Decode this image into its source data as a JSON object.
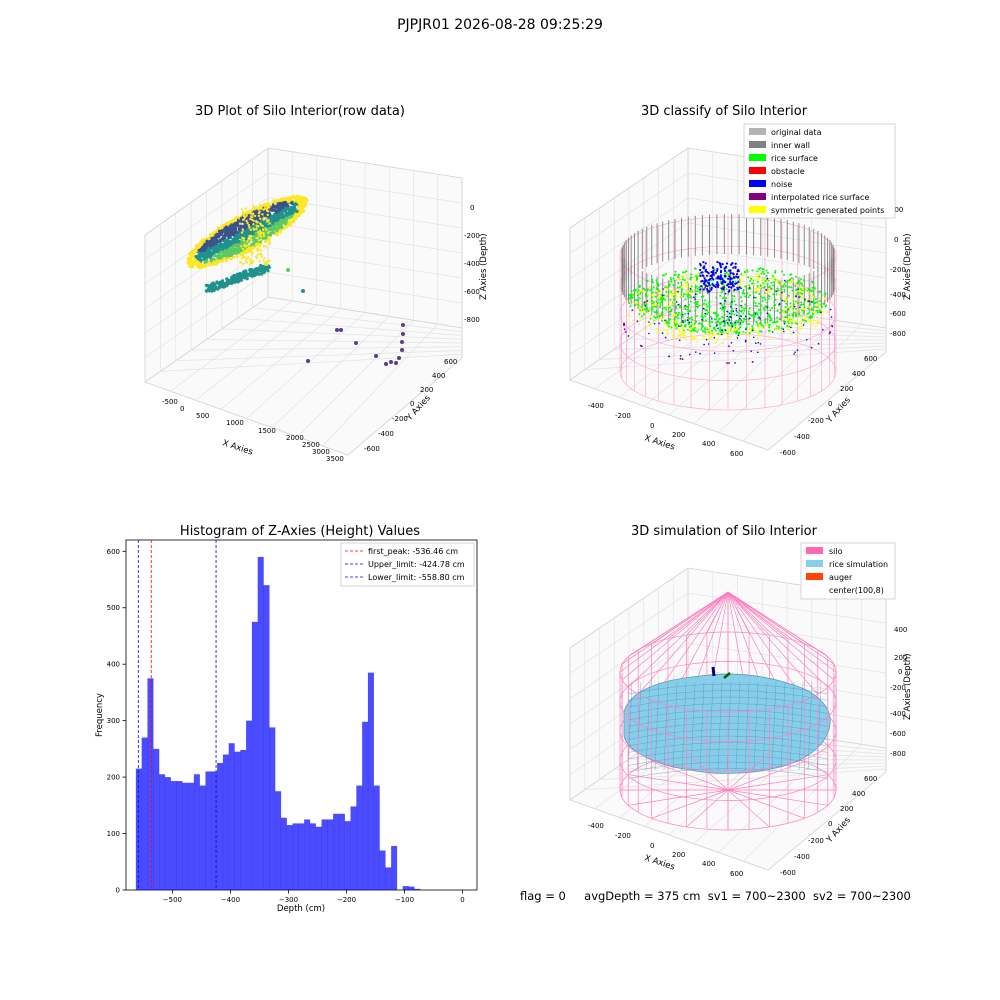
{
  "figure": {
    "suptitle": "PJPJR01 2026-08-28 09:25:29",
    "footer": {
      "flag": "flag = 0",
      "avg_depth": "avgDepth = 375 cm",
      "sv1": "sv1 = 700~2300",
      "sv2": "sv2 = 700~2300"
    }
  },
  "chart_data": [
    {
      "type": "scatter3d",
      "title": "3D Plot of Silo Interior(row data)",
      "xlabel": "X Axies",
      "ylabel": "Y Axies",
      "zlabel": "Z Axies (Depth)",
      "x_ticks": [
        "-500",
        "0",
        "500",
        "1000",
        "1500",
        "2000",
        "2500",
        "3000",
        "3500"
      ],
      "y_ticks": [
        "-600",
        "-400",
        "-200",
        "0",
        "200",
        "400",
        "600"
      ],
      "z_ticks": [
        "0",
        "-200",
        "-400",
        "-600",
        "-800"
      ],
      "colormap": [
        "#440154",
        "#3b528b",
        "#21918c",
        "#5ec962",
        "#fde725"
      ]
    },
    {
      "type": "scatter3d",
      "title": "3D classify of Silo Interior",
      "xlabel": "X Axies",
      "ylabel": "Y Axies",
      "zlabel": "Z Axies (Depth)",
      "x_ticks": [
        "-400",
        "-200",
        "0",
        "200",
        "400",
        "600"
      ],
      "y_ticks": [
        "-600",
        "-400",
        "-200",
        "0",
        "200",
        "400",
        "600"
      ],
      "z_ticks": [
        "200",
        "0",
        "-200",
        "-400",
        "-600",
        "-800"
      ],
      "legend": [
        {
          "label": "original data",
          "color": "#b3b3b3"
        },
        {
          "label": "inner wall",
          "color": "#808080"
        },
        {
          "label": "rice surface",
          "color": "#00ff00"
        },
        {
          "label": "obstacle",
          "color": "#ff0000"
        },
        {
          "label": "noise",
          "color": "#0000ff"
        },
        {
          "label": "interpolated rice surface",
          "color": "#800080"
        },
        {
          "label": "symmetric generated points",
          "color": "#ffff00"
        }
      ],
      "legend_location": "upper right"
    },
    {
      "type": "bar",
      "title": "Histogram of Z-Axies (Height) Values",
      "xlabel": "Depth (cm)",
      "ylabel": "Frequency",
      "xlim": [
        -580,
        25
      ],
      "ylim": [
        0,
        620
      ],
      "x_ticks": [
        -500,
        -400,
        -300,
        -200,
        -100,
        0
      ],
      "y_ticks": [
        0,
        100,
        200,
        300,
        400,
        500,
        600
      ],
      "bin_start": -563,
      "bin_width": 10,
      "values": [
        215,
        270,
        375,
        250,
        205,
        200,
        193,
        193,
        190,
        190,
        205,
        185,
        210,
        210,
        225,
        240,
        260,
        245,
        248,
        300,
        475,
        590,
        540,
        288,
        175,
        128,
        115,
        118,
        118,
        125,
        118,
        112,
        125,
        125,
        135,
        135,
        122,
        148,
        185,
        298,
        385,
        185,
        70,
        40,
        78,
        0,
        7,
        6,
        2
      ],
      "bar_color": "#0000ff",
      "vlines": [
        {
          "label": "first_peak: -536.46 cm",
          "x": -536.46,
          "color": "#ff0000"
        },
        {
          "label": "Upper_limit: -424.78 cm",
          "x": -424.78,
          "color": "#0000ff"
        },
        {
          "label": "Lower_limit: -558.80 cm",
          "x": -558.8,
          "color": "#0000ff"
        }
      ],
      "legend_location": "upper right"
    },
    {
      "type": "surface3d",
      "title": "3D simulation of Silo Interior",
      "xlabel": "X Axies",
      "ylabel": "Y Axies",
      "zlabel": "Z Axies (Depth)",
      "x_ticks": [
        "-400",
        "-200",
        "0",
        "200",
        "400",
        "600"
      ],
      "y_ticks": [
        "-600",
        "-400",
        "-200",
        "0",
        "200",
        "400",
        "600"
      ],
      "z_ticks": [
        "400",
        "200",
        "0",
        "-200",
        "-400",
        "-600",
        "-800"
      ],
      "legend": [
        {
          "label": "silo",
          "color": "#ff69b4"
        },
        {
          "label": "rice simulation",
          "color": "#87ceeb"
        },
        {
          "label": "auger",
          "color": "#ff4500"
        },
        {
          "label": "center(100,8)",
          "color": ""
        }
      ],
      "legend_location": "upper right"
    }
  ]
}
